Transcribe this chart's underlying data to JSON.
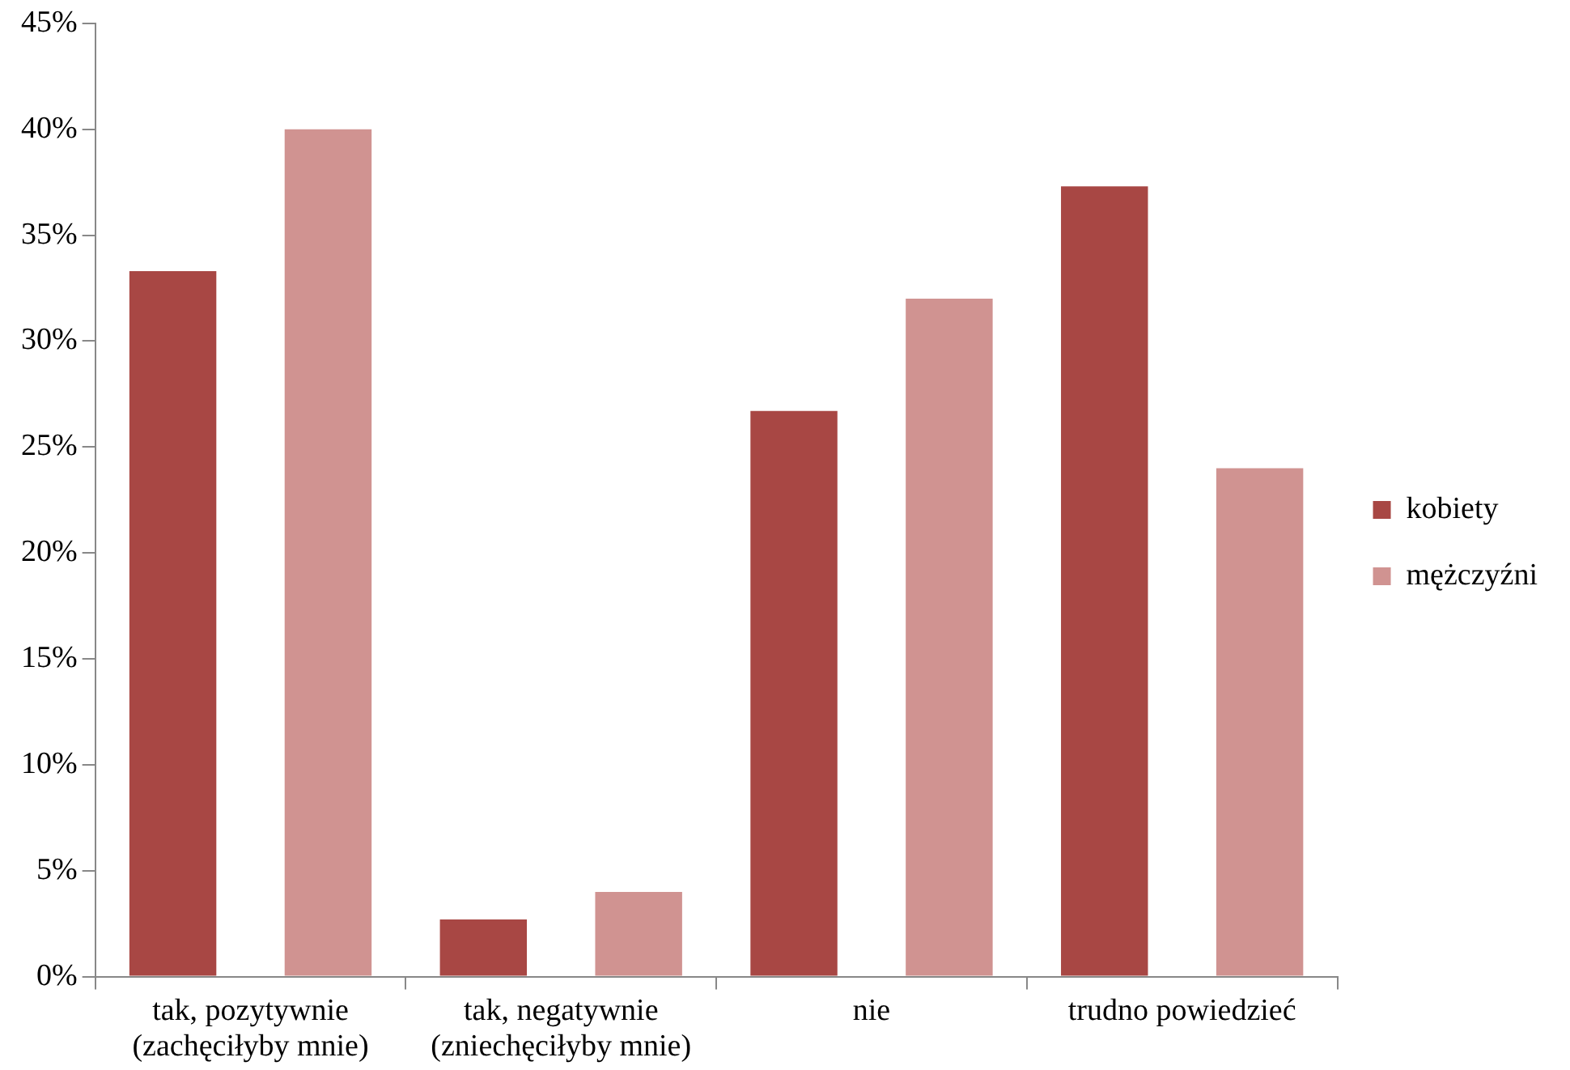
{
  "chart_data": {
    "type": "bar",
    "categories": [
      "tak, pozytywnie (zachęciłyby mnie)",
      "tak, negatywnie (zniechęciłyby mnie)",
      "nie",
      "trudno powiedzieć"
    ],
    "series": [
      {
        "name": "kobiety",
        "color": "#a84744",
        "values": [
          33.3,
          2.7,
          26.7,
          37.3
        ]
      },
      {
        "name": "mężczyźni",
        "color": "#d09391",
        "values": [
          40,
          4,
          32,
          24
        ]
      }
    ],
    "ylim": [
      0,
      45
    ],
    "yticks": [
      {
        "value": 0,
        "label": "0%"
      },
      {
        "value": 5,
        "label": "5%"
      },
      {
        "value": 10,
        "label": "10%"
      },
      {
        "value": 15,
        "label": "15%"
      },
      {
        "value": 20,
        "label": "20%"
      },
      {
        "value": 25,
        "label": "25%"
      },
      {
        "value": 30,
        "label": "30%"
      },
      {
        "value": 35,
        "label": "35%"
      },
      {
        "value": 40,
        "label": "40%"
      },
      {
        "value": 45,
        "label": "45%"
      }
    ],
    "grid": false,
    "legend": "right"
  }
}
